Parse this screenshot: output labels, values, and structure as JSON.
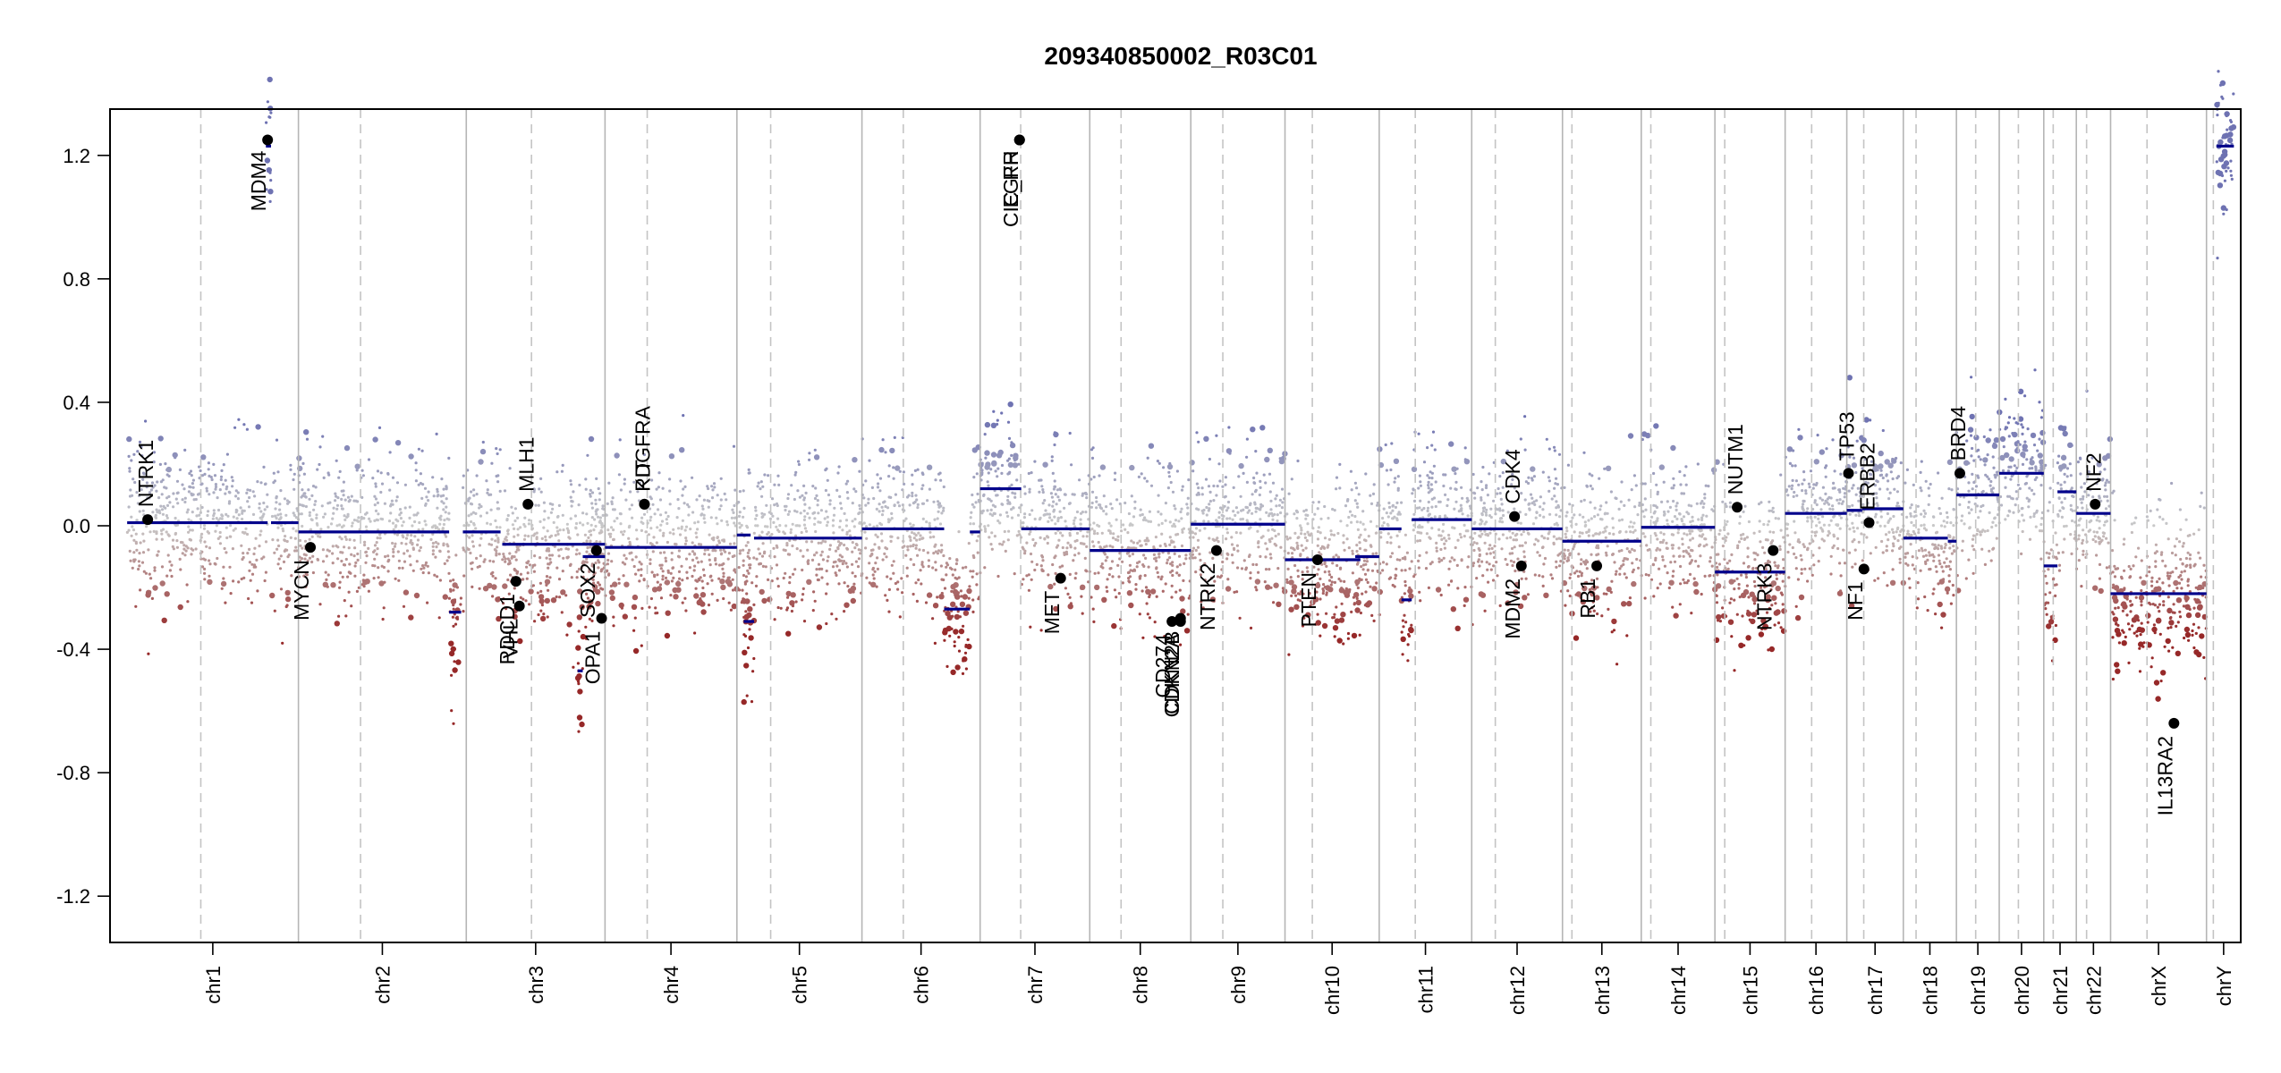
{
  "chart_data": {
    "type": "scatter",
    "title": "209340850002_R03C01",
    "xlabel": "",
    "ylabel": "",
    "ylim": [
      -1.35,
      1.35
    ],
    "y_ticks": [
      -1.2,
      -0.8,
      -0.4,
      0.0,
      0.4,
      0.8,
      1.2
    ],
    "y_tick_labels": [
      "-1.2",
      "-0.8",
      "-0.4",
      "0.0",
      "0.4",
      "0.8",
      "1.2"
    ],
    "grid": false,
    "colors": {
      "gain": "#8487bb",
      "neutral": "#c8c8c8",
      "loss": "#a03a3a",
      "segment": "#00008b",
      "gene_point": "#000000",
      "separator": "#b5b5b5",
      "centromere": "#c4c4c4"
    },
    "chromosomes": [
      {
        "name": "chr1",
        "start": 0,
        "end": 1.0,
        "centromere": 0.43
      },
      {
        "name": "chr2",
        "start": 1.0,
        "end": 1.98,
        "centromere": 0.37
      },
      {
        "name": "chr3",
        "start": 1.98,
        "end": 2.79,
        "centromere": 0.47
      },
      {
        "name": "chr4",
        "start": 2.79,
        "end": 3.56,
        "centromere": 0.32
      },
      {
        "name": "chr5",
        "start": 3.56,
        "end": 4.29,
        "centromere": 0.27
      },
      {
        "name": "chr6",
        "start": 4.29,
        "end": 4.98,
        "centromere": 0.35
      },
      {
        "name": "chr7",
        "start": 4.98,
        "end": 5.62,
        "centromere": 0.37
      },
      {
        "name": "chr8",
        "start": 5.62,
        "end": 6.21,
        "centromere": 0.31
      },
      {
        "name": "chr9",
        "start": 6.21,
        "end": 6.76,
        "centromere": 0.34
      },
      {
        "name": "chr10",
        "start": 6.76,
        "end": 7.31,
        "centromere": 0.29
      },
      {
        "name": "chr11",
        "start": 7.31,
        "end": 7.85,
        "centromere": 0.39
      },
      {
        "name": "chr12",
        "start": 7.85,
        "end": 8.38,
        "centromere": 0.26
      },
      {
        "name": "chr13",
        "start": 8.38,
        "end": 8.84,
        "centromere": 0.12
      },
      {
        "name": "chr14",
        "start": 8.84,
        "end": 9.27,
        "centromere": 0.13
      },
      {
        "name": "chr15",
        "start": 9.27,
        "end": 9.68,
        "centromere": 0.14
      },
      {
        "name": "chr16",
        "start": 9.68,
        "end": 10.04,
        "centromere": 0.43
      },
      {
        "name": "chr17",
        "start": 10.04,
        "end": 10.37,
        "centromere": 0.3
      },
      {
        "name": "chr18",
        "start": 10.37,
        "end": 10.68,
        "centromere": 0.24
      },
      {
        "name": "chr19",
        "start": 10.68,
        "end": 10.93,
        "centromere": 0.45
      },
      {
        "name": "chr20",
        "start": 10.93,
        "end": 11.19,
        "centromere": 0.43
      },
      {
        "name": "chr21",
        "start": 11.19,
        "end": 11.38,
        "centromere": 0.29
      },
      {
        "name": "chr22",
        "start": 11.38,
        "end": 11.58,
        "centromere": 0.3
      },
      {
        "name": "chrX",
        "start": 11.58,
        "end": 12.14,
        "centromere": 0.38
      },
      {
        "name": "chrY",
        "start": 12.14,
        "end": 12.34,
        "centromere": 0.2
      }
    ],
    "x_range": [
      -0.1,
      12.34
    ],
    "segments": [
      {
        "chr": "chr1",
        "x0": 0.0,
        "x1": 0.82,
        "y": 0.01
      },
      {
        "chr": "chr1",
        "x0": 0.84,
        "x1": 1.0,
        "y": 0.01
      },
      {
        "chr": "chr1",
        "x0": 0.81,
        "x1": 0.84,
        "y": 1.23
      },
      {
        "chr": "chr2",
        "x0": 1.0,
        "x1": 1.88,
        "y": -0.02
      },
      {
        "chr": "chr2",
        "x0": 1.88,
        "x1": 1.95,
        "y": -0.28
      },
      {
        "chr": "chr2",
        "x0": 1.96,
        "x1": 2.18,
        "y": -0.02
      },
      {
        "chr": "chr3",
        "x0": 2.19,
        "x1": 2.79,
        "y": -0.06
      },
      {
        "chr": "chr3",
        "x0": 2.63,
        "x1": 2.66,
        "y": -0.47
      },
      {
        "chr": "chr3",
        "x0": 2.66,
        "x1": 2.79,
        "y": -0.1
      },
      {
        "chr": "chr4",
        "x0": 2.79,
        "x1": 3.56,
        "y": -0.07
      },
      {
        "chr": "chr5",
        "x0": 3.56,
        "x1": 3.64,
        "y": -0.03
      },
      {
        "chr": "chr5",
        "x0": 3.6,
        "x1": 3.66,
        "y": -0.31
      },
      {
        "chr": "chr5",
        "x0": 3.66,
        "x1": 4.29,
        "y": -0.04
      },
      {
        "chr": "chr6",
        "x0": 4.29,
        "x1": 4.77,
        "y": -0.01
      },
      {
        "chr": "chr6",
        "x0": 4.77,
        "x1": 4.92,
        "y": -0.27
      },
      {
        "chr": "chr6",
        "x0": 4.92,
        "x1": 4.98,
        "y": -0.02
      },
      {
        "chr": "chr7",
        "x0": 4.98,
        "x1": 5.22,
        "y": 0.12
      },
      {
        "chr": "chr7",
        "x0": 5.22,
        "x1": 5.62,
        "y": -0.01
      },
      {
        "chr": "chr8",
        "x0": 5.62,
        "x1": 6.21,
        "y": -0.08
      },
      {
        "chr": "chr9",
        "x0": 6.21,
        "x1": 6.76,
        "y": 0.005
      },
      {
        "chr": "chr10",
        "x0": 6.76,
        "x1": 7.2,
        "y": -0.11
      },
      {
        "chr": "chr10",
        "x0": 7.17,
        "x1": 7.31,
        "y": -0.1
      },
      {
        "chr": "chr11",
        "x0": 7.31,
        "x1": 7.44,
        "y": -0.01
      },
      {
        "chr": "chr11",
        "x0": 7.44,
        "x1": 7.5,
        "y": -0.24
      },
      {
        "chr": "chr11",
        "x0": 7.5,
        "x1": 7.85,
        "y": 0.02
      },
      {
        "chr": "chr12",
        "x0": 7.85,
        "x1": 8.38,
        "y": -0.01
      },
      {
        "chr": "chr13",
        "x0": 8.38,
        "x1": 8.84,
        "y": -0.05
      },
      {
        "chr": "chr14",
        "x0": 8.84,
        "x1": 9.27,
        "y": -0.005
      },
      {
        "chr": "chr15",
        "x0": 9.27,
        "x1": 9.68,
        "y": -0.15
      },
      {
        "chr": "chr16",
        "x0": 9.68,
        "x1": 10.04,
        "y": 0.04
      },
      {
        "chr": "chr17",
        "x0": 10.04,
        "x1": 10.13,
        "y": 0.05
      },
      {
        "chr": "chr17",
        "x0": 10.13,
        "x1": 10.37,
        "y": 0.055
      },
      {
        "chr": "chr18",
        "x0": 10.37,
        "x1": 10.63,
        "y": -0.04
      },
      {
        "chr": "chr18",
        "x0": 10.63,
        "x1": 10.68,
        "y": -0.05
      },
      {
        "chr": "chr19",
        "x0": 10.68,
        "x1": 10.93,
        "y": 0.1
      },
      {
        "chr": "chr20",
        "x0": 10.93,
        "x1": 11.19,
        "y": 0.17
      },
      {
        "chr": "chr21",
        "x0": 11.19,
        "x1": 11.27,
        "y": -0.13
      },
      {
        "chr": "chr21",
        "x0": 11.27,
        "x1": 11.38,
        "y": 0.11
      },
      {
        "chr": "chr22",
        "x0": 11.38,
        "x1": 11.58,
        "y": 0.04
      },
      {
        "chr": "chrX",
        "x0": 11.58,
        "x1": 12.14,
        "y": -0.22
      },
      {
        "chr": "chrY",
        "x0": 12.2,
        "x1": 12.3,
        "y": 1.23
      }
    ],
    "genes": [
      {
        "name": "NTRK1",
        "x": 0.12,
        "y": 0.02
      },
      {
        "name": "MDM4",
        "x": 0.82,
        "y": 1.25
      },
      {
        "name": "MYCN",
        "x": 1.07,
        "y": -0.07
      },
      {
        "name": "RDCD1",
        "x": 2.27,
        "y": -0.18
      },
      {
        "name": "VHL",
        "x": 2.29,
        "y": -0.26
      },
      {
        "name": "MLH1",
        "x": 2.34,
        "y": 0.07
      },
      {
        "name": "SOX2",
        "x": 2.74,
        "y": -0.08
      },
      {
        "name": "OPA1",
        "x": 2.77,
        "y": -0.3
      },
      {
        "name": "KIT",
        "x": 3.02,
        "y": 0.07
      },
      {
        "name": "PDGFRA",
        "x": 3.02,
        "y": 0.07
      },
      {
        "name": "EGFR",
        "x": 5.21,
        "y": 1.25
      },
      {
        "name": "EGFR_ln",
        "x": 5.21,
        "y": 1.25
      },
      {
        "name": "MET",
        "x": 5.45,
        "y": -0.17
      },
      {
        "name": "CDKN2A",
        "x": 6.15,
        "y": -0.31
      },
      {
        "name": "CDKN2B",
        "x": 6.15,
        "y": -0.3
      },
      {
        "name": "CD274",
        "x": 6.1,
        "y": -0.31
      },
      {
        "name": "NTRK2",
        "x": 6.36,
        "y": -0.08
      },
      {
        "name": "PTEN",
        "x": 6.95,
        "y": -0.11
      },
      {
        "name": "CDK4",
        "x": 8.1,
        "y": 0.03
      },
      {
        "name": "MDM2",
        "x": 8.14,
        "y": -0.13
      },
      {
        "name": "RB1",
        "x": 8.58,
        "y": -0.13
      },
      {
        "name": "NUTM1",
        "x": 9.4,
        "y": 0.06
      },
      {
        "name": "NTRK3",
        "x": 9.61,
        "y": -0.08
      },
      {
        "name": "TP53",
        "x": 10.05,
        "y": 0.17
      },
      {
        "name": "ERBB2",
        "x": 10.17,
        "y": 0.01
      },
      {
        "name": "NF1",
        "x": 10.14,
        "y": -0.14
      },
      {
        "name": "BRD4",
        "x": 10.7,
        "y": 0.17
      },
      {
        "name": "NF2",
        "x": 11.49,
        "y": 0.07
      },
      {
        "name": "IL13RA2",
        "x": 11.95,
        "y": -0.64
      }
    ],
    "gene_labels": {
      "NTRK1": "NTRK1",
      "MDM4": "MDM4",
      "MYCN": "MYCN",
      "RDCD1": "RDCD1",
      "VHL": "VHL",
      "MLH1": "MLH1",
      "SOX2": "SOX2",
      "OPA1": "OPA1",
      "KIT": "KIT",
      "PDGFRA": "PDGFRA",
      "EGFR": "EGFR",
      "EGFR_ln": "CIC_RH",
      "MET": "MET",
      "CDKN2A": "CDKN2A",
      "CDKN2B": "CDKN2B",
      "CD274": "CD274",
      "NTRK2": "NTRK2",
      "PTEN": "PTEN",
      "CDK4": "CDK4",
      "MDM2": "MDM2",
      "RB1": "RB1",
      "NUTM1": "NUTM1",
      "NTRK3": "NTRK3",
      "TP53": "TP53",
      "ERBB2": "ERBB2",
      "NF1": "NF1",
      "BRD4": "BRD4",
      "NF2": "NF2",
      "IL13RA2": "IL13RA2"
    }
  }
}
